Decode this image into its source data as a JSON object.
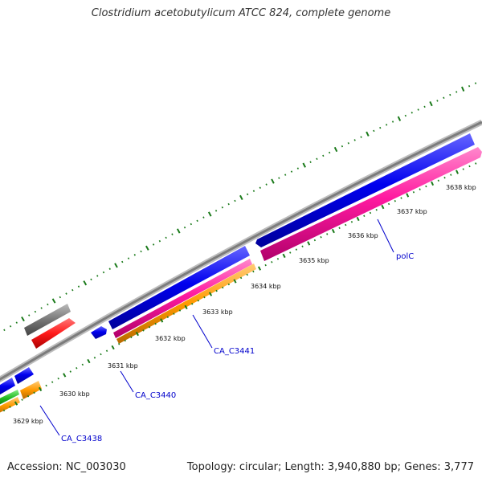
{
  "title": "Clostridium acetobutylicum ATCC 824, complete genome",
  "footer": {
    "accession": "Accession: NC_003030",
    "summary": "Topology: circular; Length: 3,940,880 bp; Genes: 3,777"
  },
  "scale_labels": [
    "3629 kbp",
    "3630 kbp",
    "3631 kbp",
    "3632 kbp",
    "3633 kbp",
    "3634 kbp",
    "3635 kbp",
    "3636 kbp",
    "3637 kbp",
    "3638 kbp"
  ],
  "gene_labels": [
    "CA_C3438",
    "CA_C3440",
    "CA_C3441",
    "polC"
  ],
  "colors": {
    "backbone": "#8c8c8c",
    "forward_cds": "#0000ee",
    "reverse_cds": "#ff1aa0",
    "rna": "#ff1a1a",
    "orange_track": "#ff9900",
    "green_track": "#22bb22",
    "gray_feature": "#666666",
    "tick": "#1a7a1a",
    "gene_label": "#0000cc"
  }
}
